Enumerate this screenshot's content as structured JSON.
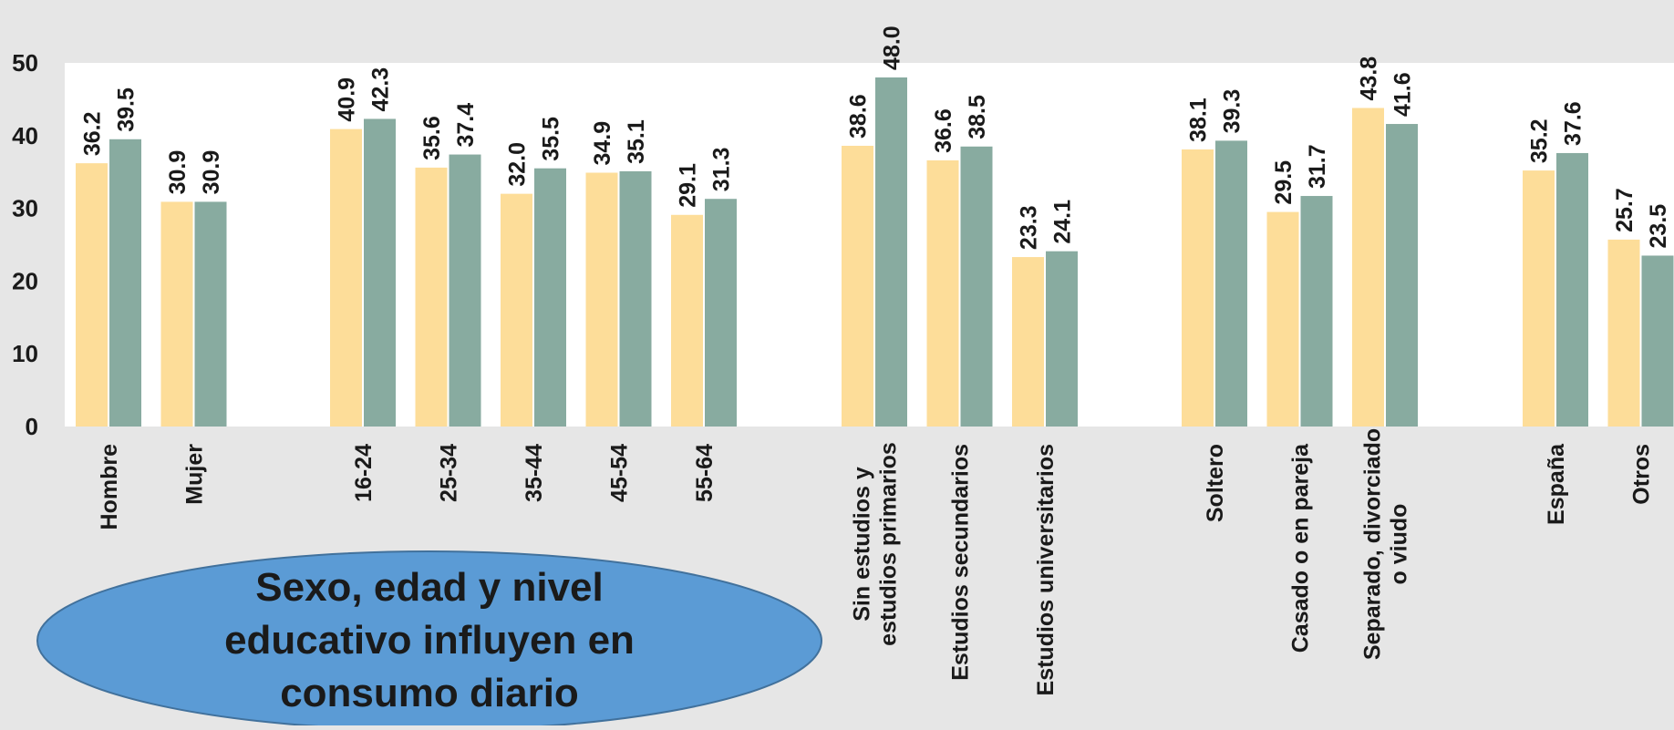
{
  "chart_data": {
    "type": "bar",
    "title": "",
    "xlabel": "",
    "ylabel": "",
    "ylim": [
      0,
      50
    ],
    "y_ticks": [
      0,
      10,
      20,
      30,
      40,
      50
    ],
    "grid": false,
    "legend": "none",
    "groups": [
      {
        "categories": [
          [
            "Hombre"
          ],
          [
            "Mujer"
          ]
        ]
      },
      {
        "categories": [
          [
            "16-24"
          ],
          [
            "25-34"
          ],
          [
            "35-44"
          ],
          [
            "45-54"
          ],
          [
            "55-64"
          ]
        ]
      },
      {
        "categories": [
          [
            "Sin estudios y",
            "estudios primarios"
          ],
          [
            "Estudios secundarios"
          ],
          [
            "Estudios universitarios"
          ]
        ]
      },
      {
        "categories": [
          [
            "Soltero"
          ],
          [
            "Casado o en pareja"
          ],
          [
            "Separado, divorciado",
            "o viudo"
          ]
        ]
      },
      {
        "categories": [
          [
            "España"
          ],
          [
            "Otros"
          ]
        ]
      }
    ],
    "series": [
      {
        "color": "#fddd99",
        "values": [
          36.2,
          30.9,
          40.9,
          35.6,
          32.0,
          34.9,
          29.1,
          38.6,
          36.6,
          23.3,
          38.1,
          29.5,
          43.8,
          35.2,
          25.7
        ]
      },
      {
        "color": "#88aba0",
        "values": [
          39.5,
          30.9,
          42.3,
          37.4,
          35.5,
          35.1,
          31.3,
          48.0,
          38.5,
          24.1,
          39.3,
          31.7,
          41.6,
          37.6,
          23.5
        ]
      }
    ]
  },
  "callout": {
    "lines": [
      "Sexo, edad y nivel",
      "educativo influyen en",
      "consumo diario"
    ],
    "fill": "#5b9bd5",
    "stroke": "#41719c"
  },
  "colors": {
    "plot_bg": "#ffffff",
    "page_bg": "#e6e6e6"
  }
}
